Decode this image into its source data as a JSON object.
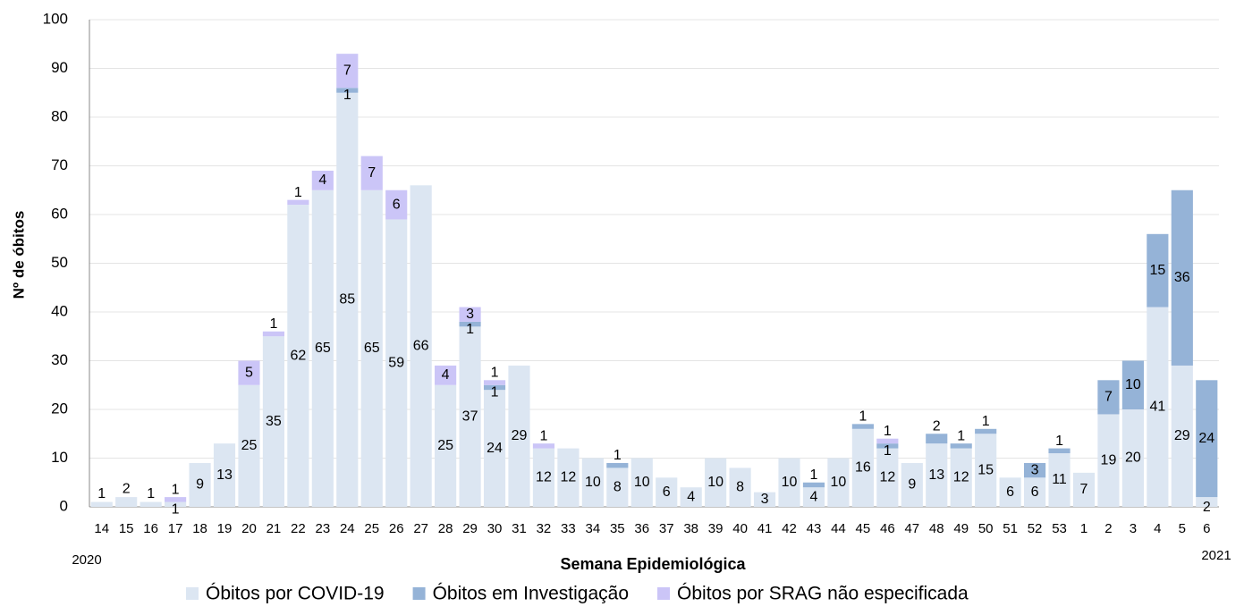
{
  "chart_data": {
    "type": "stacked_bar",
    "x_label": "Semana Epidemiológica",
    "y_label": "Nº de óbitos",
    "year_labels": [
      "2020",
      "2021"
    ],
    "categories": [
      "14",
      "15",
      "16",
      "17",
      "18",
      "19",
      "20",
      "21",
      "22",
      "23",
      "24",
      "25",
      "26",
      "27",
      "28",
      "29",
      "30",
      "31",
      "32",
      "33",
      "34",
      "35",
      "36",
      "37",
      "38",
      "39",
      "40",
      "41",
      "42",
      "43",
      "44",
      "45",
      "46",
      "47",
      "48",
      "49",
      "50",
      "51",
      "52",
      "53",
      "1",
      "2",
      "3",
      "4",
      "5",
      "6"
    ],
    "series": [
      {
        "name": "Óbitos por COVID-19",
        "color": "#dce6f2",
        "values": [
          1,
          2,
          1,
          1,
          9,
          13,
          25,
          35,
          62,
          65,
          85,
          65,
          59,
          66,
          25,
          37,
          24,
          29,
          12,
          12,
          10,
          8,
          10,
          6,
          4,
          10,
          8,
          3,
          10,
          4,
          10,
          16,
          12,
          9,
          13,
          12,
          15,
          6,
          6,
          11,
          7,
          19,
          20,
          41,
          29,
          2
        ]
      },
      {
        "name": "Óbitos em Investigação",
        "color": "#95b3d7",
        "values": [
          null,
          null,
          null,
          null,
          null,
          null,
          null,
          null,
          null,
          null,
          1,
          null,
          null,
          null,
          null,
          1,
          1,
          null,
          null,
          null,
          null,
          1,
          null,
          null,
          null,
          null,
          null,
          null,
          null,
          1,
          null,
          1,
          1,
          null,
          2,
          1,
          1,
          null,
          3,
          1,
          null,
          7,
          10,
          15,
          36,
          24
        ]
      },
      {
        "name": "Óbitos por SRAG não especificada",
        "color": "#cbc5f7",
        "values": [
          null,
          null,
          null,
          1,
          null,
          null,
          5,
          1,
          1,
          4,
          7,
          7,
          6,
          null,
          4,
          3,
          1,
          null,
          1,
          null,
          null,
          null,
          null,
          null,
          null,
          null,
          null,
          null,
          null,
          null,
          null,
          null,
          1,
          null,
          null,
          null,
          null,
          null,
          null,
          null,
          null,
          null,
          null,
          null,
          null,
          null
        ]
      }
    ],
    "ylim": [
      0,
      100
    ],
    "yticks": [
      0,
      10,
      20,
      30,
      40,
      50,
      60,
      70,
      80,
      90,
      100
    ],
    "grid": true
  }
}
